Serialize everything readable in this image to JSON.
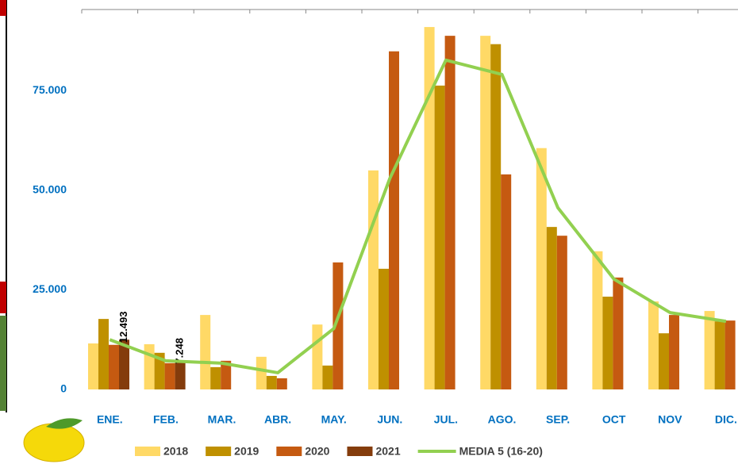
{
  "chart_data": {
    "type": "bar",
    "categories": [
      "ENE.",
      "FEB.",
      "MAR.",
      "ABR.",
      "MAY.",
      "JUN.",
      "JUL.",
      "AGO.",
      "SEP.",
      "OCT",
      "NOV",
      "DIC."
    ],
    "series": [
      {
        "name": "2018",
        "color": "#ffd966",
        "values": [
          11550,
          11350,
          18700,
          8200,
          16300,
          55000,
          91000,
          88800,
          60600,
          34700,
          22100,
          19700
        ]
      },
      {
        "name": "2019",
        "color": "#bf9000",
        "values": [
          17700,
          9200,
          5600,
          3400,
          6000,
          30300,
          76300,
          86700,
          40800,
          23300,
          14100,
          17100
        ]
      },
      {
        "name": "2020",
        "color": "#c55a11",
        "values": [
          11200,
          6600,
          7200,
          2800,
          31900,
          84900,
          88800,
          54000,
          38600,
          28100,
          18700,
          17300
        ]
      },
      {
        "name": "2021",
        "color": "#843c0c",
        "values": [
          12493,
          7248,
          null,
          null,
          null,
          null,
          null,
          null,
          null,
          null,
          null,
          null
        ],
        "value_labels": [
          "12.493",
          "7.248",
          null,
          null,
          null,
          null,
          null,
          null,
          null,
          null,
          null,
          null
        ]
      },
      {
        "name": "MEDIA 5 (16-20)",
        "color": "#92d050",
        "type": "line",
        "values": [
          12500,
          7200,
          6600,
          4200,
          15300,
          53000,
          82700,
          79100,
          45600,
          27700,
          19300,
          17100
        ]
      }
    ],
    "ylim": [
      0,
      95000
    ],
    "yticks": [
      0,
      {
        "value": 25000,
        "label": "25.000"
      },
      {
        "value": 50000,
        "label": "50.000"
      },
      {
        "value": 75000,
        "label": "75.000"
      }
    ],
    "legend": "bottom"
  }
}
